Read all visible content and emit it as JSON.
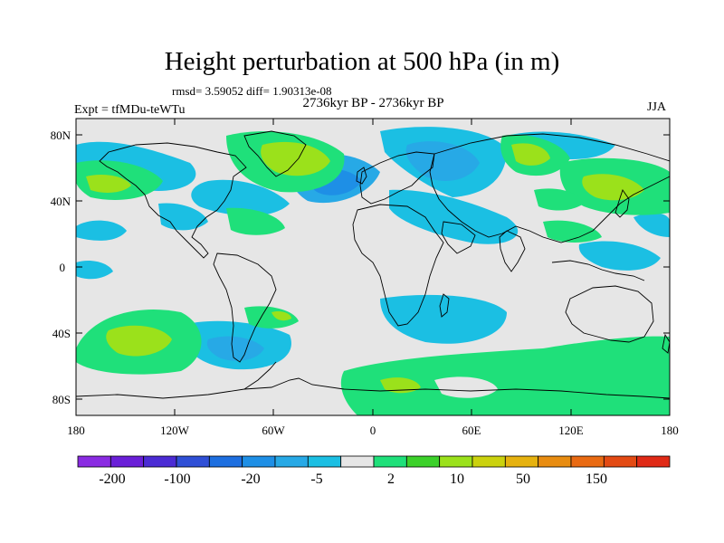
{
  "title": "Height perturbation at 500 hPa (in m)",
  "stats": "rmsd= 3.59052 diff= 1.90313e-08",
  "experiment": "Expt = tfMDu-teWTu",
  "period": "2736kyr BP - 2736kyr BP",
  "season": "JJA",
  "lat_ticks": [
    "80N",
    "40N",
    "0",
    "40S",
    "80S"
  ],
  "lon_ticks": [
    "180",
    "120W",
    "60W",
    "0",
    "60E",
    "120E",
    "180"
  ],
  "colorbar": {
    "colors": [
      "#8a2be2",
      "#6a1fd8",
      "#4b2bd4",
      "#2f4fd6",
      "#1d6fe0",
      "#1e8fe6",
      "#27a9e6",
      "#1bbfe3",
      "#e6e6e6",
      "#1fe07a",
      "#3cd12a",
      "#9be11b",
      "#cbd20e",
      "#e6b20f",
      "#e88c11",
      "#e96a12",
      "#e34a13",
      "#e02a16"
    ],
    "labels": [
      "-200",
      "-100",
      "-20",
      "-5",
      "2",
      "10",
      "50",
      "150"
    ]
  }
}
